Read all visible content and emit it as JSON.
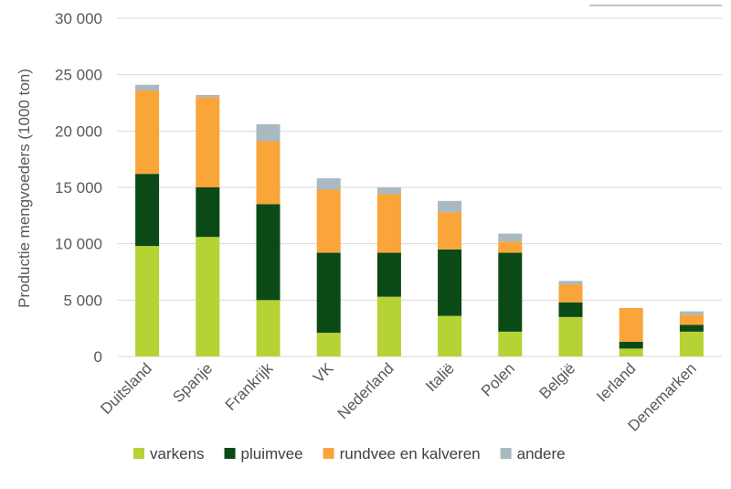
{
  "chart_data": {
    "type": "bar",
    "stacked": true,
    "title": "",
    "xlabel": "",
    "ylabel": "Productie mengvoeders (1000 ton)",
    "ylim": [
      0,
      30000
    ],
    "yticks": [
      0,
      5000,
      10000,
      15000,
      20000,
      25000,
      30000
    ],
    "ytick_labels": [
      "0",
      "5 000",
      "10 000",
      "15 000",
      "20 000",
      "25 000",
      "30 000"
    ],
    "grid": true,
    "legend_position": "bottom",
    "categories": [
      "Duitsland",
      "Spanje",
      "Frankrijk",
      "VK",
      "Nederland",
      "Italië",
      "Polen",
      "België",
      "Ierland",
      "Denemarken"
    ],
    "series": [
      {
        "name": "varkens",
        "color": "#b5d334",
        "values": [
          9800,
          10600,
          5000,
          2100,
          5300,
          3600,
          2200,
          3500,
          700,
          2200
        ]
      },
      {
        "name": "pluimvee",
        "color": "#0b4a17",
        "values": [
          6400,
          4400,
          8500,
          7100,
          3900,
          5900,
          7000,
          1300,
          600,
          600
        ]
      },
      {
        "name": "rundvee en kalveren",
        "color": "#f9a53a",
        "values": [
          7400,
          8000,
          5600,
          5600,
          5200,
          3300,
          1000,
          1600,
          3000,
          900
        ]
      },
      {
        "name": "andere",
        "color": "#a9b9c1",
        "values": [
          500,
          200,
          1500,
          1000,
          600,
          1000,
          700,
          300,
          0,
          300
        ]
      }
    ]
  }
}
